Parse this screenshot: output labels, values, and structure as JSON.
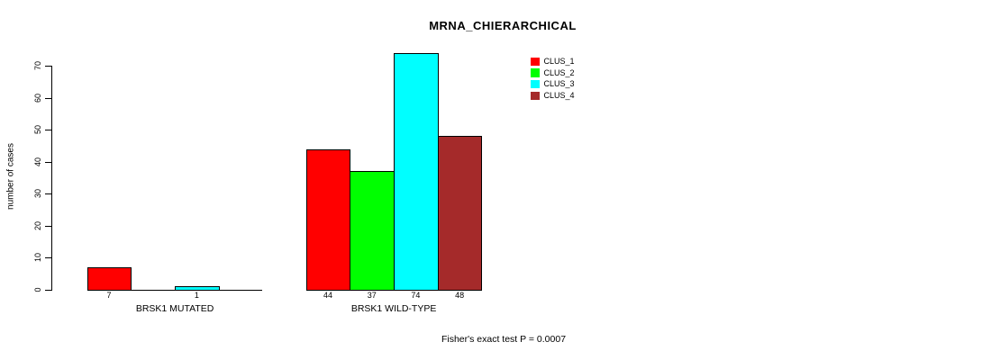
{
  "title": "MRNA_CHIERARCHICAL",
  "chart_data": {
    "type": "bar",
    "title": "MRNA_CHIERARCHICAL",
    "xlabel": "",
    "ylabel": "number of cases",
    "ylim": [
      0,
      74
    ],
    "yticks": [
      0,
      10,
      20,
      30,
      40,
      50,
      60,
      70
    ],
    "categories": [
      "BRSK1 MUTATED",
      "BRSK1 WILD-TYPE"
    ],
    "series": [
      {
        "name": "CLUS_1",
        "color": "#FF0000",
        "values": [
          7,
          44
        ]
      },
      {
        "name": "CLUS_2",
        "color": "#00FF00",
        "values": [
          0,
          37
        ]
      },
      {
        "name": "CLUS_3",
        "color": "#00FFFF",
        "values": [
          1,
          74
        ]
      },
      {
        "name": "CLUS_4",
        "color": "#A52A2A",
        "values": [
          0,
          48
        ]
      }
    ],
    "bar_value_labels": {
      "BRSK1 MUTATED": [
        "7",
        "",
        "1",
        ""
      ],
      "BRSK1 WILD-TYPE": [
        "44",
        "37",
        "74",
        "48"
      ]
    },
    "legend": {
      "position": "top-right",
      "entries": [
        "CLUS_1",
        "CLUS_2",
        "CLUS_3",
        "CLUS_4"
      ]
    },
    "grid": false,
    "annotation": "Fisher's exact test P = 0.0007"
  },
  "footer": {
    "note": "Fisher's exact test P = 0.0007"
  }
}
